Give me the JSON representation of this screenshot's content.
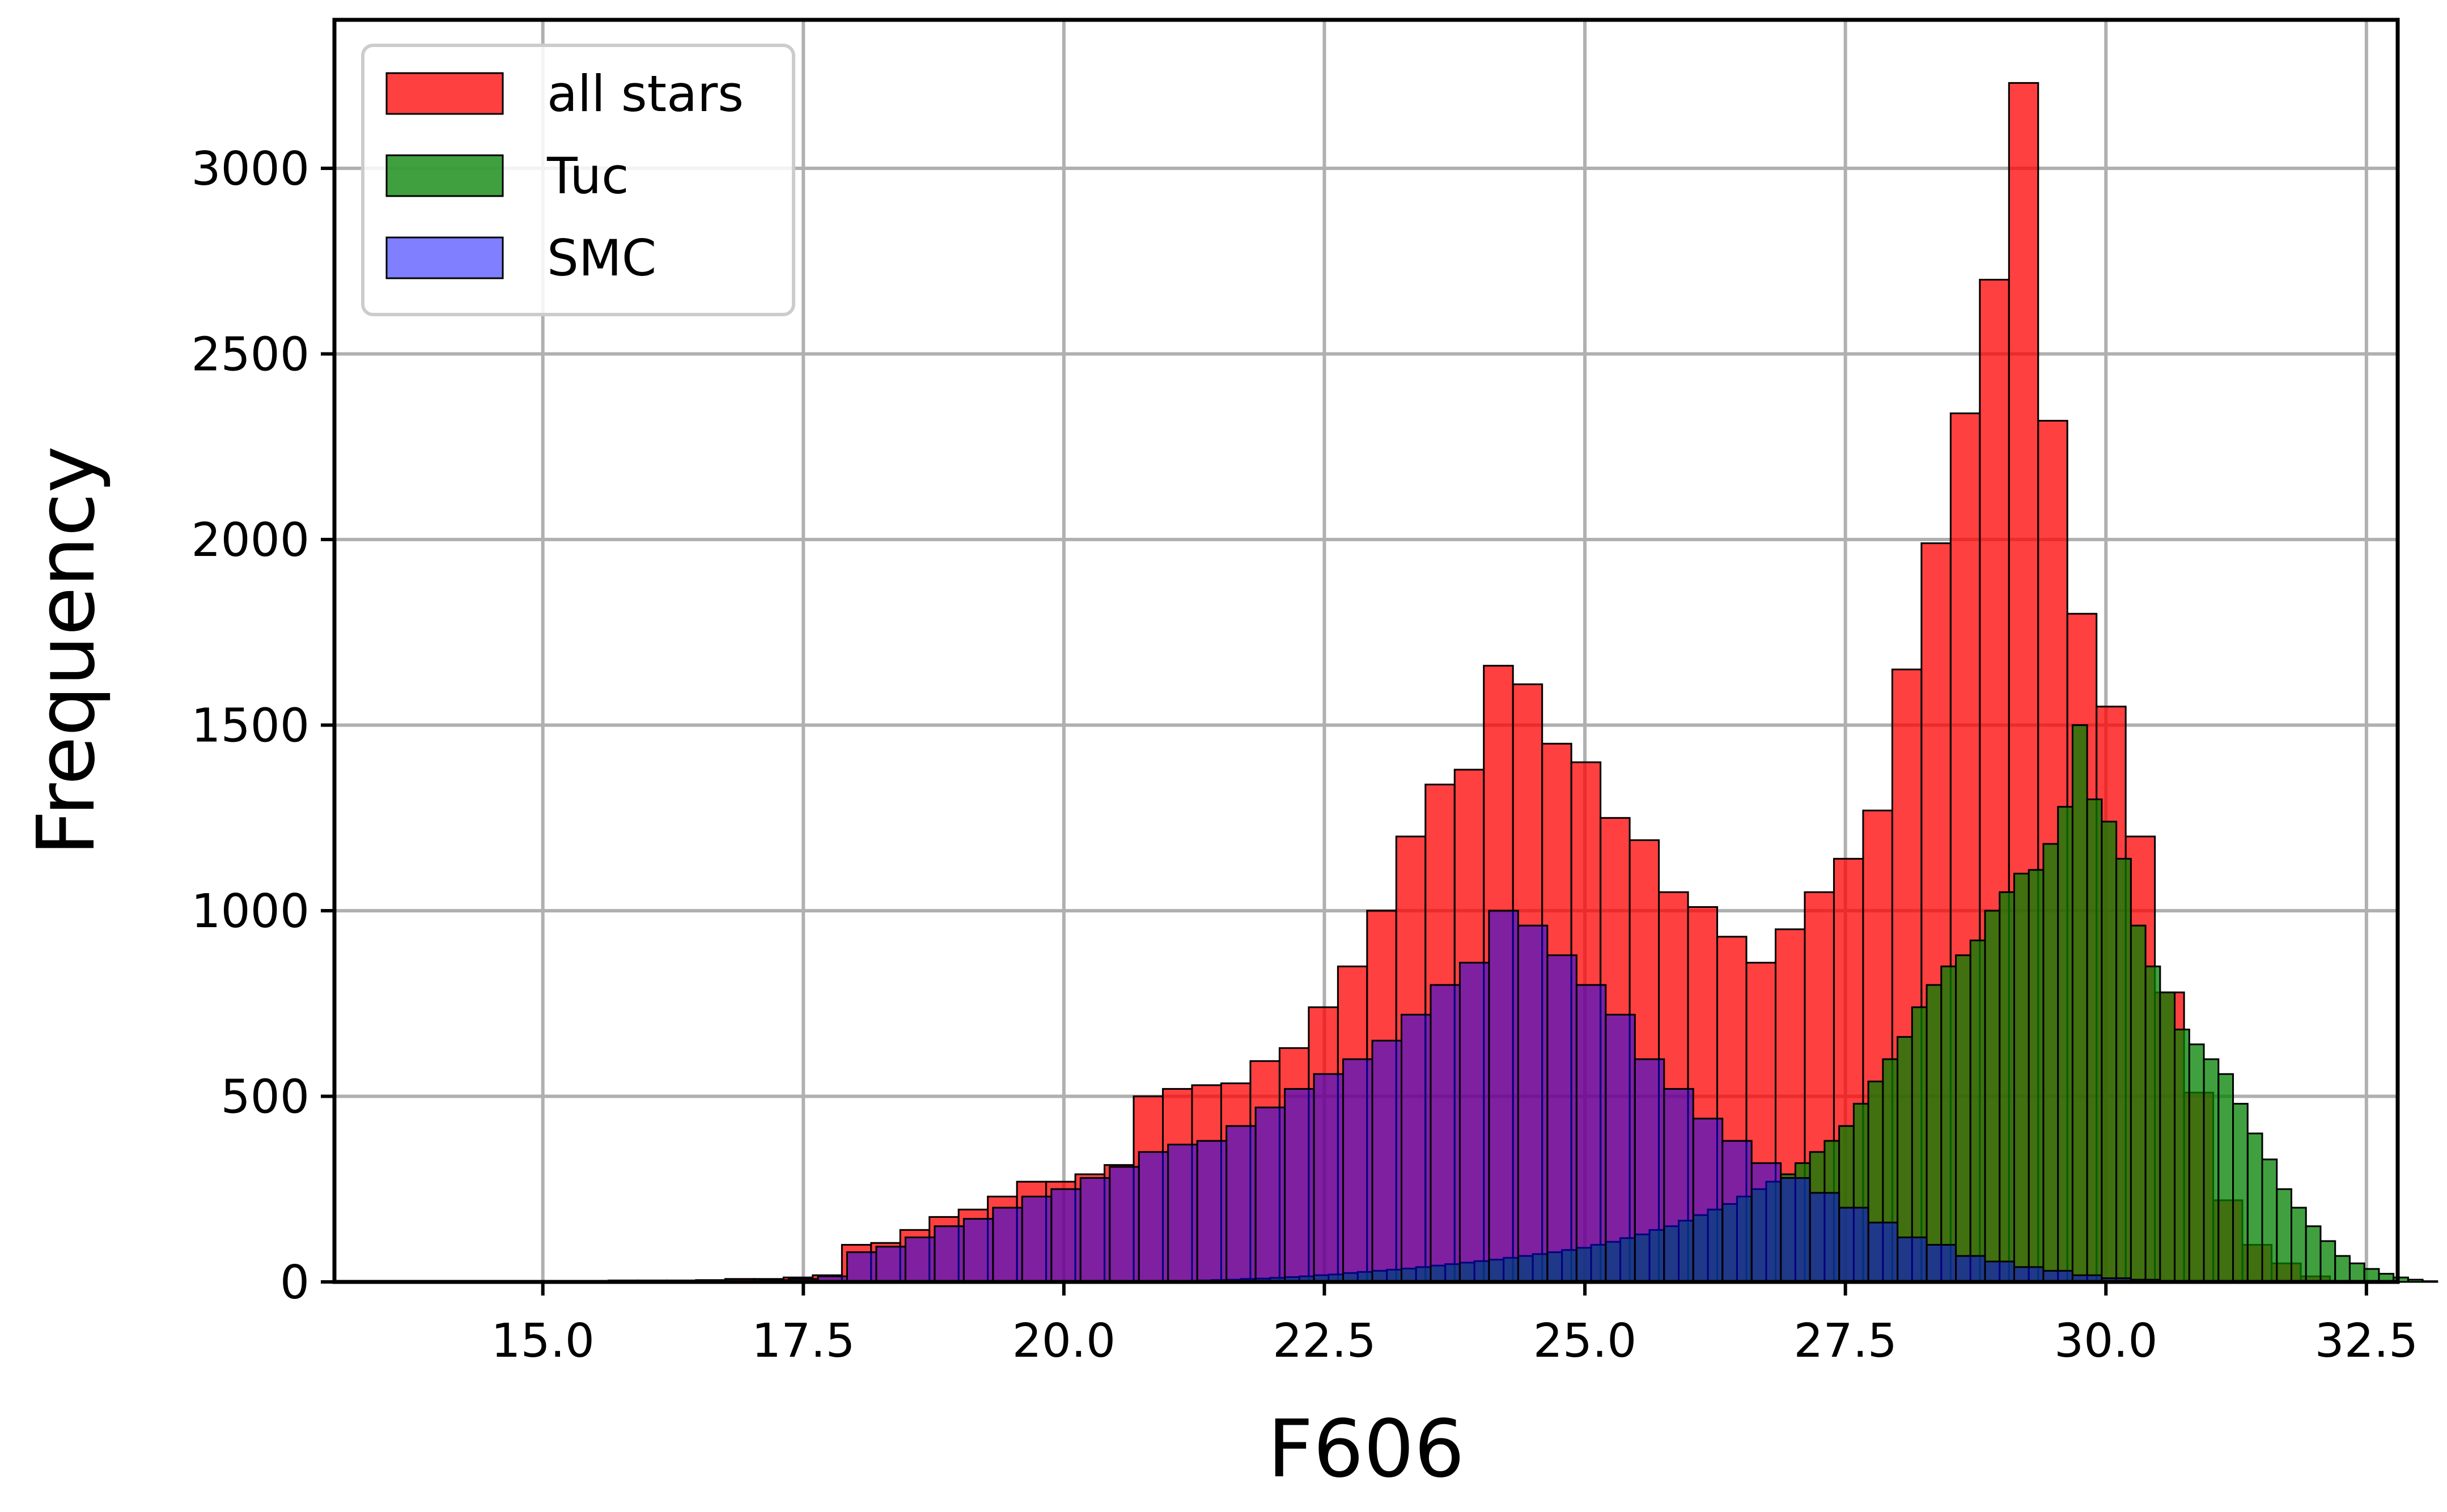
{
  "chart_data": {
    "type": "bar",
    "subtype": "overlaid histogram",
    "xlabel": "F606",
    "ylabel": "Frequency",
    "xlim": [
      13.0,
      32.8
    ],
    "ylim": [
      0,
      3400
    ],
    "xticks": [
      "15.0",
      "17.5",
      "20.0",
      "22.5",
      "25.0",
      "27.5",
      "30.0",
      "32.5"
    ],
    "yticks": [
      "0",
      "500",
      "1000",
      "1500",
      "2000",
      "2500",
      "3000"
    ],
    "grid": true,
    "legend_position": "top-left",
    "series": [
      {
        "name": "all stars",
        "color": "#ff0000",
        "alpha": 0.75,
        "bin_start": 13.95,
        "bin_width": 0.28,
        "values": [
          2,
          2,
          2,
          3,
          3,
          3,
          4,
          4,
          4,
          5,
          8,
          8,
          12,
          18,
          100,
          105,
          140,
          175,
          195,
          230,
          270,
          270,
          290,
          315,
          500,
          520,
          530,
          535,
          595,
          630,
          740,
          850,
          1000,
          1200,
          1340,
          1380,
          1660,
          1610,
          1450,
          1400,
          1250,
          1190,
          1050,
          1010,
          930,
          860,
          950,
          1050,
          1140,
          1270,
          1650,
          1990,
          2340,
          2700,
          3230,
          2320,
          1800,
          1550,
          1200,
          780,
          510,
          220,
          100,
          50,
          15
        ]
      },
      {
        "name": "Tuc",
        "color": "#008000",
        "alpha": 0.75,
        "bin_start": 21.0,
        "bin_width": 0.14,
        "values": [
          2,
          3,
          4,
          5,
          6,
          8,
          9,
          11,
          13,
          15,
          18,
          20,
          24,
          27,
          30,
          33,
          36,
          40,
          44,
          48,
          52,
          56,
          60,
          65,
          70,
          75,
          80,
          86,
          92,
          100,
          108,
          118,
          128,
          140,
          150,
          165,
          180,
          195,
          210,
          230,
          250,
          270,
          290,
          320,
          350,
          380,
          420,
          480,
          540,
          600,
          660,
          740,
          800,
          850,
          880,
          920,
          1000,
          1050,
          1100,
          1110,
          1180,
          1280,
          1500,
          1300,
          1240,
          1140,
          960,
          850,
          780,
          680,
          640,
          600,
          560,
          480,
          400,
          330,
          250,
          200,
          150,
          110,
          70,
          50,
          35,
          22,
          12,
          6,
          2
        ]
      },
      {
        "name": "SMC",
        "color": "#0000ff",
        "alpha": 0.5,
        "bin_start": 14.0,
        "bin_width": 0.28,
        "values": [
          0,
          0,
          0,
          0,
          0,
          0,
          0,
          0,
          0,
          2,
          3,
          5,
          8,
          15,
          80,
          95,
          120,
          150,
          170,
          200,
          230,
          250,
          280,
          310,
          350,
          370,
          380,
          420,
          470,
          520,
          560,
          600,
          650,
          720,
          800,
          860,
          1000,
          960,
          880,
          800,
          720,
          600,
          520,
          440,
          380,
          320,
          280,
          240,
          200,
          160,
          120,
          100,
          70,
          55,
          40,
          30,
          18,
          10,
          6,
          3,
          2,
          1,
          0,
          0,
          0
        ]
      }
    ]
  }
}
